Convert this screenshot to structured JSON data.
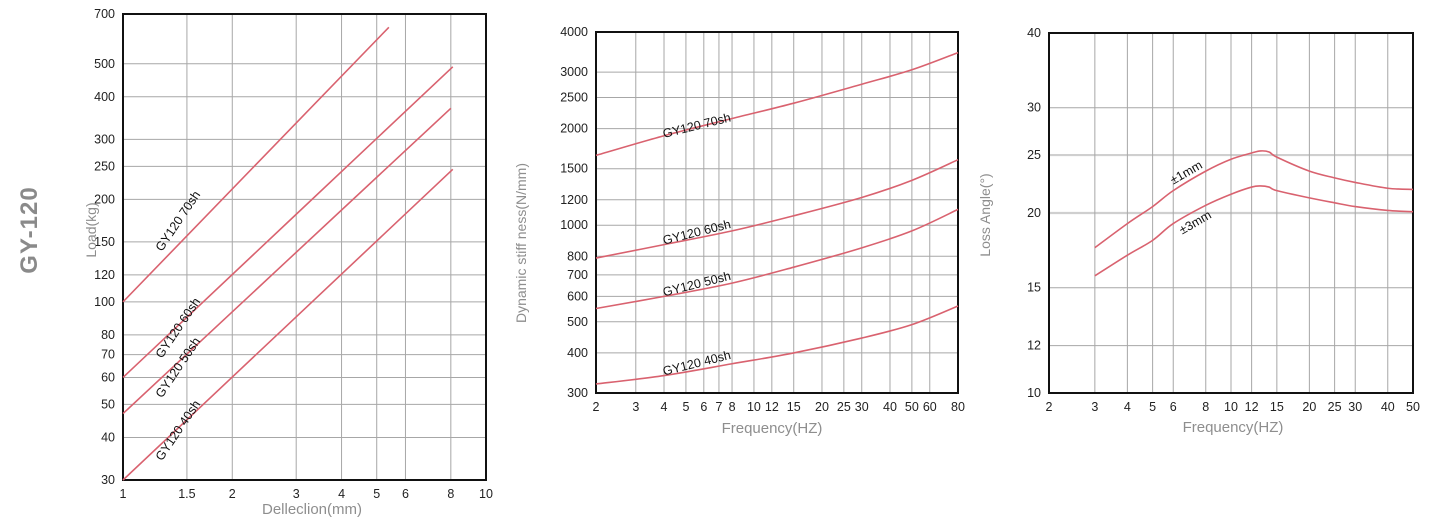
{
  "page_title": "GY-120",
  "colors": {
    "curve": "#d9626f",
    "grid": "#a7a7a7",
    "grid_bold": "#cfcfcf",
    "frame": "#111111",
    "label": "#8e8e8e"
  },
  "chart_data": [
    {
      "type": "line",
      "xscale": "log",
      "yscale": "log",
      "xlabel": "Delleclion(mm)",
      "ylabel": "Load(kg)",
      "xlim": [
        1,
        10
      ],
      "ylim": [
        30,
        700
      ],
      "grid": true,
      "xticks": [
        1,
        1.5,
        2,
        3,
        4,
        5,
        6,
        8,
        10
      ],
      "xtick_labels": [
        "1",
        "1.5",
        "2",
        "3",
        "4",
        "5",
        "6",
        "8",
        "10"
      ],
      "yticks": [
        30,
        40,
        50,
        60,
        70,
        80,
        100,
        120,
        150,
        200,
        250,
        300,
        400,
        500,
        700
      ],
      "ytick_labels": [
        "30",
        "40",
        "50",
        "60",
        "70",
        "80",
        "100",
        "120",
        "150",
        "200",
        "250",
        "300",
        "400",
        "500",
        "700"
      ],
      "series": [
        {
          "name": "GY120 70sh",
          "x": [
            1,
            5.4
          ],
          "y": [
            100,
            640
          ]
        },
        {
          "name": "GY120 60sh",
          "x": [
            1,
            8.1
          ],
          "y": [
            60,
            490
          ]
        },
        {
          "name": "GY120 50sh",
          "x": [
            1,
            8.0
          ],
          "y": [
            47,
            370
          ]
        },
        {
          "name": "GY120 40sh",
          "x": [
            1,
            8.1
          ],
          "y": [
            30,
            245
          ]
        }
      ]
    },
    {
      "type": "line",
      "xscale": "log",
      "yscale": "log",
      "xlabel": "Frequency(HZ)",
      "ylabel": "Dynamic stiff ness(N/mm)",
      "xlim": [
        2,
        80
      ],
      "ylim": [
        300,
        4000
      ],
      "grid": true,
      "xticks": [
        2,
        3,
        4,
        5,
        6,
        7,
        8,
        10,
        12,
        15,
        20,
        25,
        30,
        40,
        50,
        60,
        80
      ],
      "xtick_labels": [
        "2",
        "3",
        "4",
        "5",
        "6",
        "7",
        "8",
        "10",
        "12",
        "15",
        "20",
        "25",
        "30",
        "40",
        "50",
        "60",
        "80"
      ],
      "yticks": [
        300,
        400,
        500,
        600,
        700,
        800,
        1000,
        1200,
        1500,
        2000,
        2500,
        3000,
        4000
      ],
      "ytick_labels": [
        "300",
        "400",
        "500",
        "600",
        "700",
        "800",
        "1000",
        "1200",
        "1500",
        "2000",
        "2500",
        "3000",
        "4000"
      ],
      "series": [
        {
          "name": "GY120 70sh",
          "x": [
            2,
            4,
            8,
            15,
            30,
            50,
            80
          ],
          "y": [
            1650,
            1900,
            2150,
            2400,
            2750,
            3050,
            3450
          ]
        },
        {
          "name": "GY120 60sh",
          "x": [
            2,
            4,
            8,
            15,
            30,
            50,
            80
          ],
          "y": [
            790,
            870,
            960,
            1070,
            1220,
            1380,
            1600
          ]
        },
        {
          "name": "GY120 50sh",
          "x": [
            2,
            4,
            8,
            15,
            30,
            50,
            80
          ],
          "y": [
            550,
            600,
            660,
            740,
            850,
            960,
            1120
          ]
        },
        {
          "name": "GY120 40sh",
          "x": [
            2,
            4,
            8,
            15,
            30,
            50,
            80
          ],
          "y": [
            320,
            340,
            370,
            400,
            445,
            490,
            560
          ]
        }
      ]
    },
    {
      "type": "line",
      "xscale": "log",
      "yscale": "log",
      "xlabel": "Frequency(HZ)",
      "ylabel": "Loss Angle(°)",
      "xlim": [
        2,
        50
      ],
      "ylim": [
        10,
        40
      ],
      "grid": true,
      "xticks": [
        2,
        3,
        4,
        5,
        6,
        8,
        10,
        12,
        15,
        20,
        25,
        30,
        40,
        50
      ],
      "xtick_labels": [
        "2",
        "3",
        "4",
        "5",
        "6",
        "8",
        "10",
        "12",
        "15",
        "20",
        "25",
        "30",
        "40",
        "50"
      ],
      "yticks": [
        10,
        12,
        15,
        20,
        25,
        30,
        40
      ],
      "ytick_labels": [
        "10",
        "12",
        "15",
        "20",
        "25",
        "30",
        "40"
      ],
      "series": [
        {
          "name": "±1mm",
          "x": [
            3,
            4,
            5,
            6,
            8,
            10,
            12,
            13,
            14,
            15,
            20,
            25,
            30,
            40,
            50
          ],
          "y": [
            17.5,
            19.2,
            20.5,
            21.8,
            23.5,
            24.6,
            25.2,
            25.4,
            25.3,
            24.8,
            23.5,
            22.9,
            22.5,
            22.0,
            21.9
          ]
        },
        {
          "name": "±3mm",
          "x": [
            3,
            4,
            5,
            6,
            8,
            10,
            12,
            13,
            14,
            15,
            20,
            25,
            30,
            40,
            50
          ],
          "y": [
            15.7,
            17.0,
            18.0,
            19.2,
            20.6,
            21.5,
            22.1,
            22.2,
            22.1,
            21.8,
            21.2,
            20.8,
            20.5,
            20.2,
            20.1
          ]
        }
      ]
    }
  ]
}
